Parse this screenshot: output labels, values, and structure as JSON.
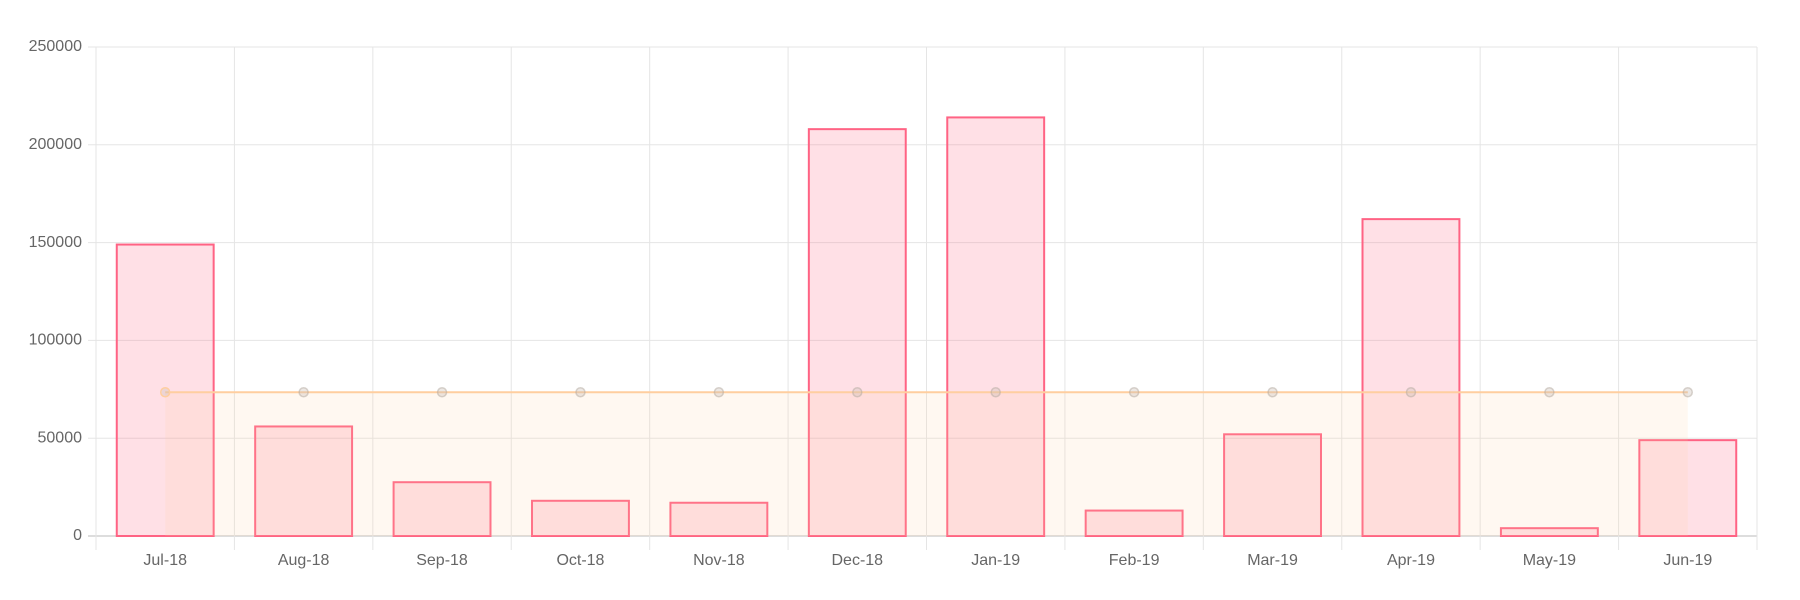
{
  "chart_data": {
    "type": "bar",
    "categories": [
      "Jul-18",
      "Aug-18",
      "Sep-18",
      "Oct-18",
      "Nov-18",
      "Dec-18",
      "Jan-19",
      "Feb-19",
      "Mar-19",
      "Apr-19",
      "May-19",
      "Jun-19"
    ],
    "series": [
      {
        "type": "bar",
        "color": "#ff6384",
        "fill": "rgba(255,99,132,0.2)",
        "values": [
          149000,
          56000,
          27500,
          18000,
          17000,
          208000,
          214000,
          13000,
          52000,
          162000,
          4000,
          49000
        ]
      },
      {
        "type": "line",
        "color": "#ffce9f",
        "fill": "rgba(255,206,159,0.15)",
        "values": [
          73500,
          73500,
          73500,
          73500,
          73500,
          73500,
          73500,
          73500,
          73500,
          73500,
          73500,
          73500
        ]
      }
    ],
    "ylim": [
      0,
      250000
    ],
    "yticks": [
      0,
      50000,
      100000,
      150000,
      200000,
      250000
    ],
    "grid": true
  }
}
